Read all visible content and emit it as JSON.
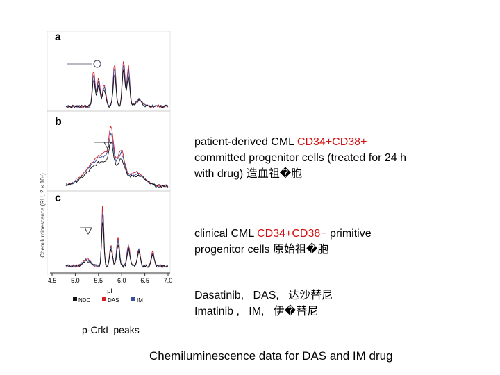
{
  "figure": {
    "panels": [
      "a",
      "b",
      "c"
    ],
    "y_axis_label": "Chemiluminescence (RU, 2 × 10⁴)",
    "x_axis_label": "pI",
    "x_ticks": [
      "4.5",
      "5.0",
      "5.5",
      "6.0",
      "6.5",
      "7.0"
    ],
    "legend": [
      "NDC",
      "DAS",
      "IM"
    ]
  },
  "text_blocks": [
    {
      "lines": [
        [
          "patient-derived CML ",
          "CD34+CD38+"
        ],
        [
          "committed progenitor cells (treated for 24 h"
        ],
        [
          "with drug) 造血祖�胞"
        ]
      ]
    },
    {
      "lines": [
        [
          "clinical CML ",
          "CD34+CD38−",
          " primitive"
        ],
        [
          "progenitor cells 原始祖�胞"
        ]
      ]
    },
    {
      "lines": [
        [
          "Dasatinib,   DAS,   达沙替尼"
        ],
        [
          "Imatinib ,   IM,   伊�替尼"
        ]
      ]
    }
  ],
  "caption": "p-CrkL peaks",
  "footer": "Chemiluminescence data for DAS and IM drug"
}
